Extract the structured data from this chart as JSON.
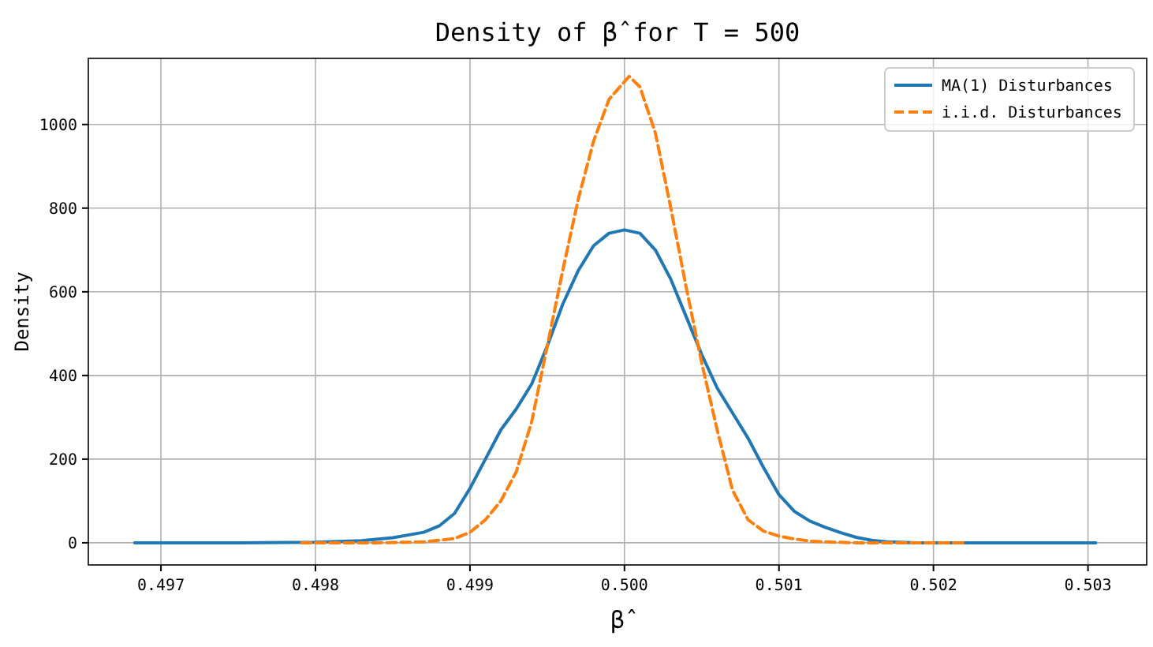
{
  "chart_data": {
    "type": "line",
    "title": "Density of β̂ for T = 500",
    "xlabel": "β̂",
    "ylabel": "Density",
    "xlim": [
      0.49653,
      0.50338
    ],
    "ylim": [
      -53,
      1158
    ],
    "xticks": [
      0.497,
      0.498,
      0.499,
      {
        "value": 0.5,
        "label": "0.500"
      },
      0.501,
      0.502,
      0.503
    ],
    "yticks": [
      0,
      200,
      400,
      600,
      800,
      1000
    ],
    "grid": true,
    "legend": "top right",
    "series": [
      {
        "name": "MA(1) Disturbances",
        "color": "#1f77b4",
        "line_style": "solid",
        "x": [
          0.49683,
          0.4975,
          0.498,
          0.4983,
          0.4985,
          0.4987,
          0.4988,
          0.4989,
          0.499,
          0.4991,
          0.4992,
          0.4993,
          0.4994,
          0.4995,
          0.4996,
          0.4997,
          0.4998,
          0.4999,
          0.5,
          0.5001,
          0.5002,
          0.5003,
          0.5004,
          0.5005,
          0.5006,
          0.5007,
          0.5008,
          0.5009,
          0.501,
          0.5011,
          0.5012,
          0.5013,
          0.5014,
          0.5015,
          0.5016,
          0.5017,
          0.5019,
          0.50305
        ],
        "values": [
          0,
          0,
          1,
          5,
          12,
          25,
          40,
          70,
          130,
          200,
          270,
          320,
          380,
          470,
          570,
          650,
          710,
          740,
          748,
          740,
          700,
          630,
          540,
          450,
          370,
          310,
          250,
          180,
          115,
          75,
          52,
          37,
          24,
          13,
          6,
          2,
          0,
          0
        ]
      },
      {
        "name": "i.i.d. Disturbances",
        "color": "#ff7f0e",
        "line_style": "dashed",
        "x": [
          0.49791,
          0.4984,
          0.4987,
          0.4989,
          0.499,
          0.4991,
          0.4992,
          0.4993,
          0.4994,
          0.4995,
          0.4996,
          0.4997,
          0.4998,
          0.4999,
          0.50003,
          0.5001,
          0.5002,
          0.5003,
          0.5004,
          0.5005,
          0.5006,
          0.5007,
          0.5008,
          0.5009,
          0.501,
          0.5011,
          0.5012,
          0.5013,
          0.5015,
          0.5022
        ],
        "values": [
          0,
          0,
          2,
          10,
          25,
          55,
          100,
          170,
          290,
          470,
          650,
          820,
          960,
          1060,
          1115,
          1090,
          980,
          800,
          610,
          430,
          270,
          125,
          55,
          28,
          16,
          9,
          4,
          2,
          0,
          0
        ]
      }
    ]
  }
}
